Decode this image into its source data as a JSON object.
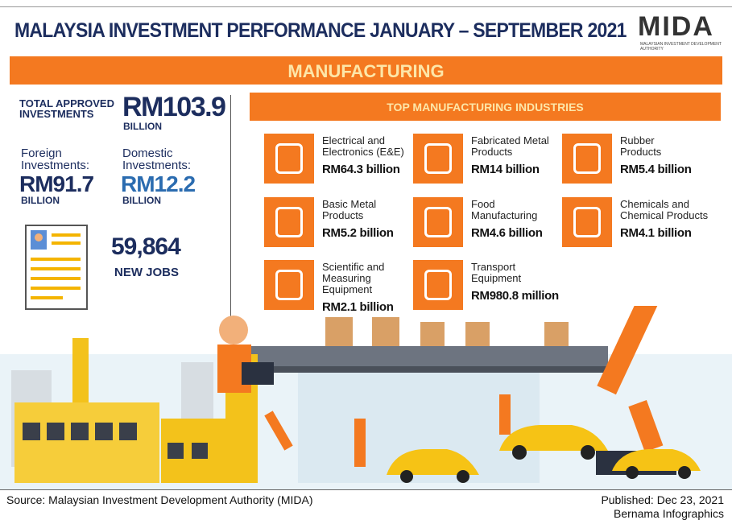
{
  "header": {
    "title": "MALAYSIA INVESTMENT PERFORMANCE JANUARY – SEPTEMBER 2021",
    "logo": "MIDA",
    "logo_subtitle": "MALAYSIAN INVESTMENT DEVELOPMENT AUTHORITY"
  },
  "banner": "MANUFACTURING",
  "summary": {
    "total_label": "TOTAL APPROVED INVESTMENTS",
    "total_value": "RM103.9",
    "total_unit": "BILLION",
    "foreign_label": "Foreign Investments:",
    "foreign_value": "RM91.7",
    "foreign_unit": "BILLION",
    "domestic_label": "Domestic Investments:",
    "domestic_value": "RM12.2",
    "domestic_unit": "BILLION",
    "jobs_value": "59,864",
    "jobs_label": "NEW JOBS"
  },
  "industries": {
    "title": "TOP MANUFACTURING INDUSTRIES",
    "items": [
      {
        "name": "Electrical and Electronics (E&E)",
        "value": "RM64.3 billion"
      },
      {
        "name": "Fabricated Metal Products",
        "value": "RM14 billion"
      },
      {
        "name": "Rubber Products",
        "value": "RM5.4 billion"
      },
      {
        "name": "Basic Metal Products",
        "value": "RM5.2 billion"
      },
      {
        "name": "Food Manufacturing",
        "value": "RM4.6 billion"
      },
      {
        "name": "Chemicals and Chemical Products",
        "value": "RM4.1 billion"
      },
      {
        "name": "Scientific and Measuring Equipment",
        "value": "RM2.1 billion"
      },
      {
        "name": "Transport Equipment",
        "value": "RM980.8 million"
      }
    ]
  },
  "footer": {
    "source": "Source: Malaysian Investment Development Authority (MIDA)",
    "published": "Published: Dec 23, 2021",
    "credit": "Bernama Infographics"
  }
}
